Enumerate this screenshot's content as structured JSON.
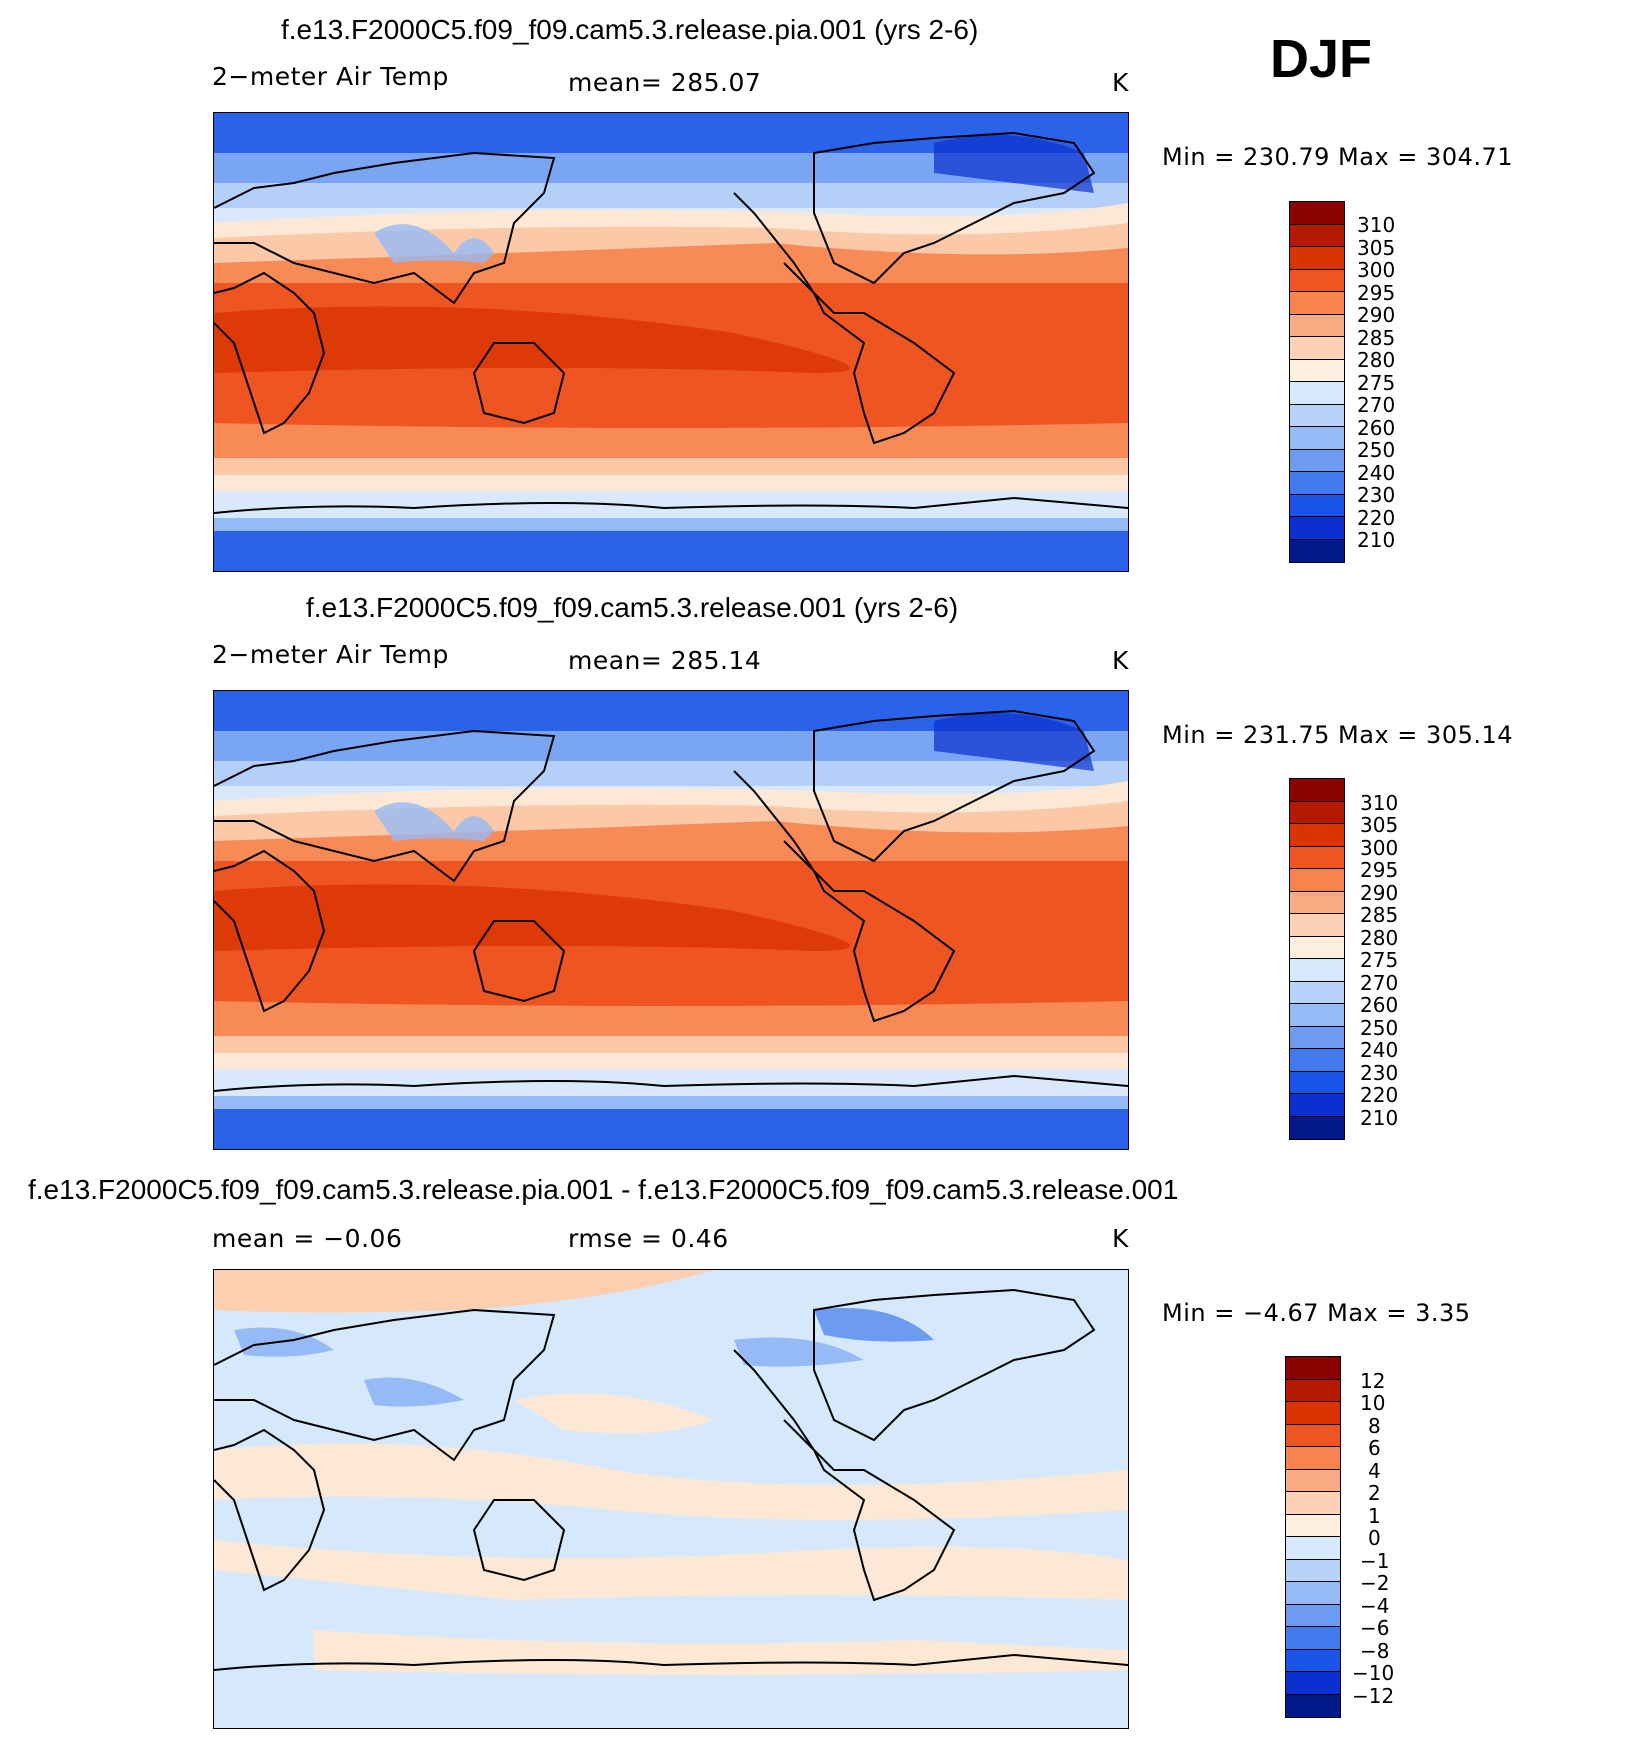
{
  "season": "DJF",
  "panels": [
    {
      "title": "f.e13.F2000C5.f09_f09.cam5.3.release.pia.001 (yrs 2-6)",
      "left_label": "2−meter Air Temp",
      "center_label": "mean=  285.07",
      "units": "K",
      "min_max": "Min  =  230.79  Max  =  304.71"
    },
    {
      "title": "f.e13.F2000C5.f09_f09.cam5.3.release.001 (yrs 2-6)",
      "left_label": "2−meter Air Temp",
      "center_label": "mean=  285.14",
      "units": "K",
      "min_max": "Min  =  231.75  Max  =  305.14"
    },
    {
      "title": "f.e13.F2000C5.f09_f09.cam5.3.release.pia.001 - f.e13.F2000C5.f09_f09.cam5.3.release.001",
      "left_label": "mean =    −0.06",
      "center_label": "rmse =     0.46",
      "units": "K",
      "min_max": "Min  =    −4.67  Max  =     3.35"
    }
  ],
  "colorbars": {
    "abs_labels": [
      "310",
      "305",
      "300",
      "295",
      "290",
      "285",
      "280",
      "275",
      "270",
      "260",
      "250",
      "240",
      "230",
      "220",
      "210"
    ],
    "diff_labels": [
      "12",
      "10",
      "8",
      "6",
      "4",
      "2",
      "1",
      "0",
      "−1",
      "−2",
      "−4",
      "−6",
      "−8",
      "−10",
      "−12"
    ],
    "colors": [
      "#8b0000",
      "#b31a00",
      "#d93300",
      "#ef5520",
      "#f7834e",
      "#fbab84",
      "#fdd1b5",
      "#fdeedd",
      "#d6e8fb",
      "#b8d3f8",
      "#96baf5",
      "#6e9bf2",
      "#437bee",
      "#1a55e8",
      "#0a30cf",
      "#001a8c"
    ]
  }
}
